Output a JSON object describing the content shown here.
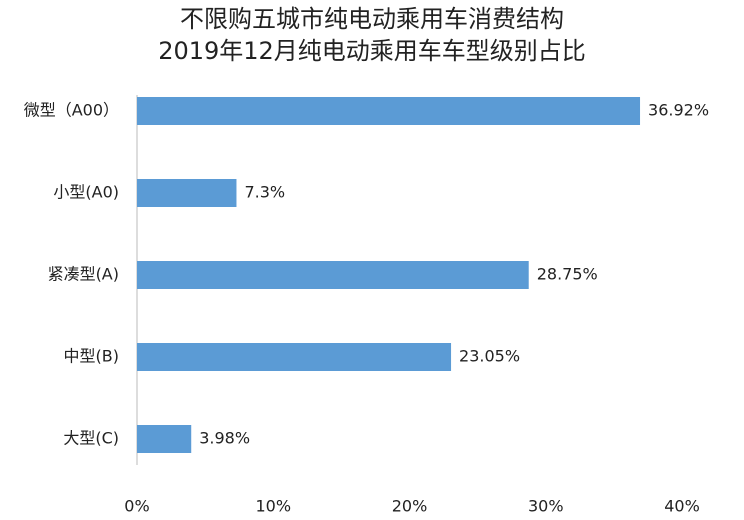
{
  "chart_data": {
    "type": "barh",
    "title": "不限购五城市纯电动乘用车消费结构",
    "subtitle": "2019年12月纯电动乘用车车型级别占比",
    "categories": [
      "微型（A00）",
      "小型(A0)",
      "紧凑型(A)",
      "中型(B)",
      "大型(C)"
    ],
    "values": [
      36.92,
      7.3,
      28.75,
      23.05,
      3.98
    ],
    "value_labels": [
      "36.92%",
      "7.3%",
      "28.75%",
      "23.05%",
      "3.98%"
    ],
    "color": "#5b9bd5",
    "xlim": [
      0,
      40
    ],
    "xticks": [
      {
        "value": 0,
        "label": "0%"
      },
      {
        "value": 10,
        "label": "10%"
      },
      {
        "value": 20,
        "label": "20%"
      },
      {
        "value": 30,
        "label": "30%"
      },
      {
        "value": 40,
        "label": "40%"
      }
    ],
    "grid": false
  }
}
